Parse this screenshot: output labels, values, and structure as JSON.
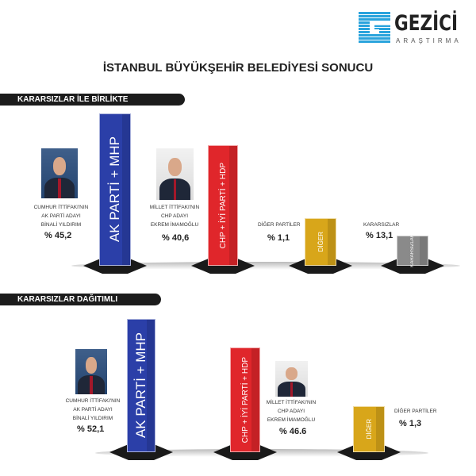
{
  "logo": {
    "name": "GEZİCİ",
    "subtitle": "ARAŞTIRMA"
  },
  "title": "İSTANBUL BÜYÜKŞEHİR BELEDİYESİ SONUCU",
  "colors": {
    "ak_parti_mhp": "#2b3fa8",
    "chp_iyi_hdp": "#e0262b",
    "diger": "#d8a61a",
    "kararsizlar": "#8a8a8a",
    "logo": "#29a3dc"
  },
  "chart_data": [
    {
      "type": "bar",
      "title": "KARARSIZLAR İLE BİRLİKTE",
      "categories": [
        "AK PARTİ + MHP",
        "CHP + İYİ PARTİ + HDP",
        "DİĞER",
        "KARARSIZLAR"
      ],
      "values": [
        45.2,
        40.6,
        1.1,
        13.1
      ],
      "value_labels": [
        "% 45,2",
        "% 40,6",
        "% 1,1",
        "% 13,1"
      ],
      "captions": [
        [
          "CUMHUR İTTİFAKI'NIN",
          "AK PARTİ ADAYI",
          "BİNALİ YILDIRIM"
        ],
        [
          "MİLLET İTTİFAKI'NIN",
          "CHP ADAYI",
          "EKREM İMAMOĞLU"
        ],
        [
          "DİĞER PARTİLER"
        ],
        [
          "KARARSIZLAR"
        ]
      ]
    },
    {
      "type": "bar",
      "title": "KARARSIZLAR DAĞITIMLI",
      "categories": [
        "AK PARTİ + MHP",
        "CHP + İYİ PARTİ + HDP",
        "DİĞER"
      ],
      "values": [
        52.1,
        46.6,
        1.3
      ],
      "value_labels": [
        "% 52,1",
        "% 46.6",
        "% 1,3"
      ],
      "captions": [
        [
          "CUMHUR İTTİFAKI'NIN",
          "AK PARTİ ADAYI",
          "BİNALİ YILDIRIM"
        ],
        [
          "MİLLET İTTİFAKI'NIN",
          "CHP ADAYI",
          "EKREM İMAMOĞLU"
        ],
        [
          "DİĞER PARTİLER"
        ]
      ]
    }
  ]
}
